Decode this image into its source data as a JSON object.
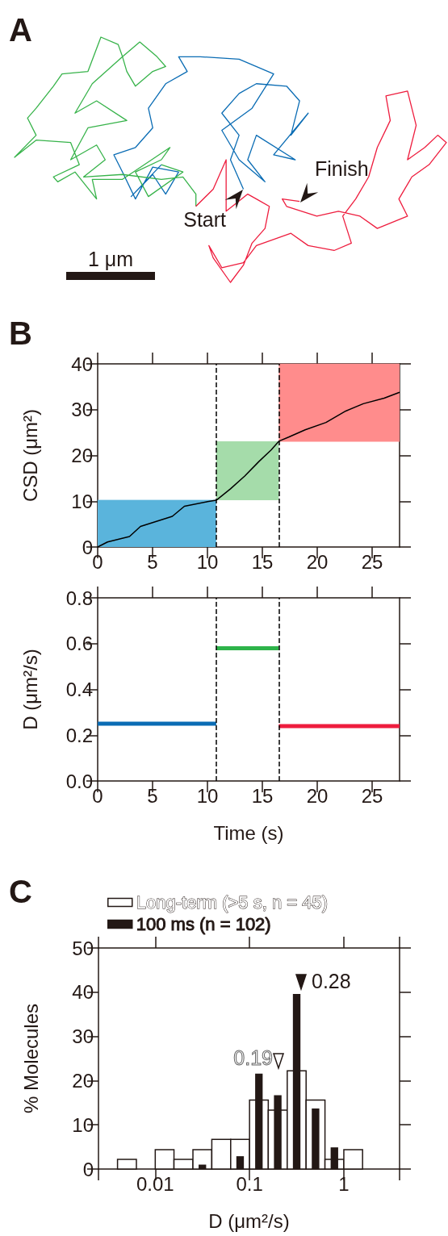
{
  "chart_data": [
    {
      "type": "other",
      "title": "A",
      "annotations": [
        "Start",
        "Finish",
        "1 μm"
      ]
    },
    {
      "type": "line",
      "title": "B",
      "ylabel": "CSD (μm²)",
      "xlim": [
        0,
        27.5
      ],
      "xticks": [
        0,
        5,
        10,
        15,
        20,
        25
      ],
      "ylim": [
        0,
        40
      ],
      "yticks": [
        0,
        10,
        20,
        30,
        40
      ],
      "series": [
        {
          "type": "line",
          "color": "#5ab4dc",
          "x": [
            0,
            10.8
          ],
          "values": [
            10.2,
            10.2
          ],
          "lower": [
            0,
            0
          ],
          "upper": [
            10.2,
            10.2
          ]
        },
        {
          "type": "line",
          "color": "#a5dcaa",
          "x": [
            10.8,
            16.5
          ],
          "values": [
            23,
            23
          ],
          "lower": [
            10.2,
            10.2
          ],
          "upper": [
            23,
            23
          ]
        },
        {
          "type": "line",
          "color": "#ff8c8c",
          "x": [
            16.5,
            27.5
          ],
          "values": [
            40,
            40
          ],
          "lower": [
            23,
            23
          ],
          "upper": [
            40,
            40
          ]
        },
        {
          "type": "line",
          "color": "#000000",
          "x": [
            0,
            0.9,
            2.9,
            3.9,
            6.8,
            7.9,
            10.0,
            10.8,
            12.1,
            13.4,
            14.7,
            15.8,
            16.5,
            17.4,
            18.9,
            20.8,
            22.6,
            24.2,
            26.1,
            27.5
          ],
          "values": [
            0,
            1.1,
            2.3,
            4.5,
            6.7,
            8.9,
            9.9,
            10.2,
            12.7,
            15.5,
            18.7,
            21.2,
            23.1,
            24.0,
            25.6,
            27.2,
            29.7,
            31.3,
            32.5,
            33.8
          ]
        }
      ],
      "ref_lines": [
        {
          "axis": "x",
          "value": 10.8,
          "line_style": "dashed",
          "color": "#000000"
        },
        {
          "axis": "x",
          "value": 16.5,
          "line_style": "dashed",
          "color": "#000000"
        }
      ]
    },
    {
      "type": "line",
      "xlabel": "Time (s)",
      "ylabel": "D (μm²/s)",
      "xlim": [
        0,
        27.5
      ],
      "xticks": [
        0,
        5,
        10,
        15,
        20,
        25
      ],
      "ylim": [
        0,
        0.8
      ],
      "yticks": [
        {
          "value": 0,
          "label": "0.0"
        },
        0.2,
        0.4,
        0.6,
        0.8
      ],
      "series": [
        {
          "color": "#0a6cb4",
          "x": [
            0,
            10.8
          ],
          "values": [
            0.25,
            0.25
          ]
        },
        {
          "color": "#2db34a",
          "x": [
            10.8,
            16.5
          ],
          "values": [
            0.58,
            0.58
          ]
        },
        {
          "color": "#ee1d3e",
          "x": [
            16.5,
            27.5
          ],
          "values": [
            0.24,
            0.24
          ]
        }
      ],
      "ref_lines": [
        {
          "axis": "x",
          "value": 10.8,
          "line_style": "dashed",
          "color": "#000000"
        },
        {
          "axis": "x",
          "value": 16.5,
          "line_style": "dashed",
          "color": "#000000"
        }
      ]
    },
    {
      "type": "histogram",
      "title": "C",
      "xlabel": "D (μm²/s)",
      "ylabel": "% Molecules",
      "log": "x",
      "legend": "top left",
      "xlim": [
        0.0025,
        3.9
      ],
      "xticks": [
        0.01,
        0.1,
        1
      ],
      "ylim": [
        0,
        50
      ],
      "yticks": [
        0,
        10,
        20,
        30,
        40,
        50
      ],
      "bins": [
        0.00398,
        0.00631,
        0.01,
        0.0158,
        0.0251,
        0.0398,
        0.0631,
        0.1,
        0.158,
        0.251,
        0.398,
        0.631,
        1,
        1.58
      ],
      "series": [
        {
          "name": "Long-term (>5 s, n = 45)",
          "color": "#ffffff",
          "values": [
            2.2,
            0,
            4.4,
            2.2,
            4.4,
            6.7,
            6.7,
            15.6,
            13.3,
            22.2,
            15.6,
            2.2,
            4.4
          ]
        },
        {
          "name": "100 ms (n = 102)",
          "color": "#231815",
          "values": [
            0,
            0,
            0,
            0,
            1.0,
            0,
            2.9,
            21.6,
            16.7,
            39.6,
            13.7,
            4.9,
            0
          ]
        }
      ],
      "annotations": [
        "0.19",
        "0.28"
      ]
    }
  ]
}
